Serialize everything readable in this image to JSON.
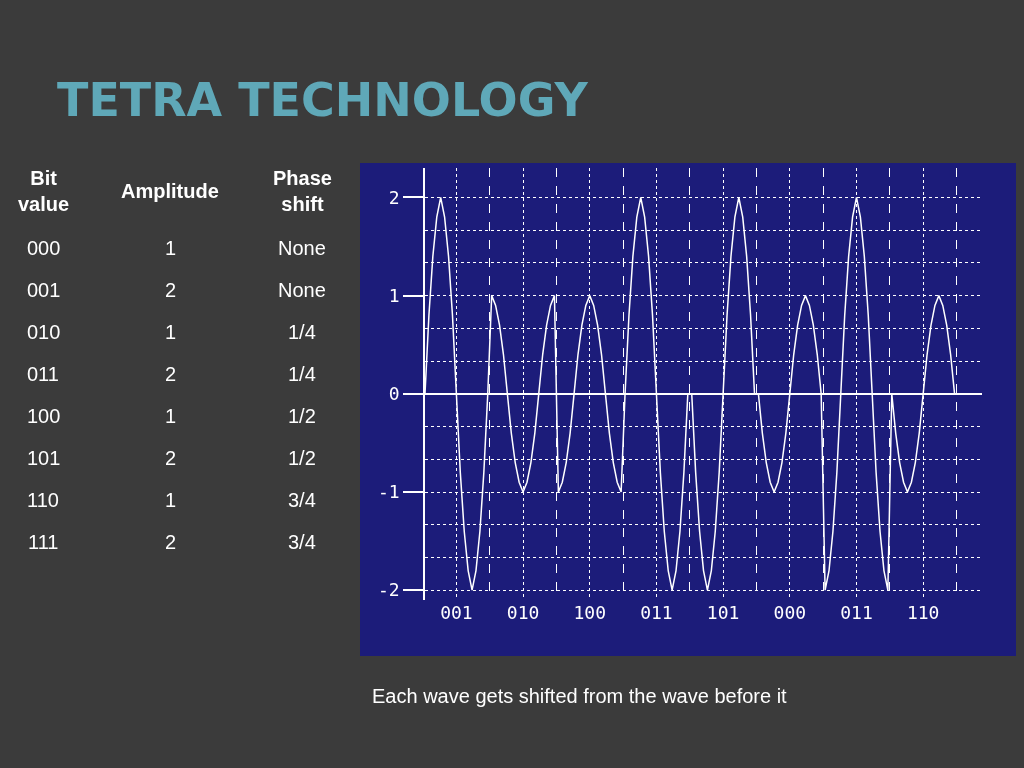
{
  "chart_data": [
    {
      "type": "other",
      "annotations": [
        "Bit\nvalue",
        "Amplitude",
        "Phase\nshift",
        "000",
        "1",
        "None",
        "001",
        "2",
        "None",
        "010",
        "1",
        "1/4",
        "011",
        "2",
        "1/4",
        "100",
        "1",
        "1/2",
        "101",
        "2",
        "1/2",
        "110",
        "1",
        "3/4",
        "111",
        "2",
        "3/4"
      ]
    },
    {
      "type": "line",
      "title": "TETRA TECHNOLOGY",
      "annotations": [
        "Each wave gets shifted from the wave before it"
      ],
      "ylim": [
        -2.1,
        2.3
      ],
      "categories": [
        null,
        null,
        null,
        null,
        null,
        null,
        null,
        null,
        "001",
        null,
        null,
        null,
        null,
        null,
        null,
        null,
        null,
        null,
        null,
        null,
        null,
        null,
        null,
        null,
        null,
        "010",
        null,
        null,
        null,
        null,
        null,
        null,
        null,
        null,
        null,
        null,
        null,
        null,
        null,
        null,
        null,
        null,
        "100",
        null,
        null,
        null,
        null,
        null,
        null,
        null,
        null,
        null,
        null,
        null,
        null,
        null,
        null,
        null,
        null,
        "011",
        null,
        null,
        null,
        null,
        null,
        null,
        null,
        null,
        null,
        null,
        null,
        null,
        null,
        null,
        null,
        null,
        "101",
        null,
        null,
        null,
        null,
        null,
        null,
        null,
        null,
        null,
        null,
        null,
        null,
        null,
        null,
        null,
        null,
        "000",
        null,
        null,
        null,
        null,
        null,
        null,
        null,
        null,
        null,
        null,
        null,
        null,
        null,
        null,
        null,
        null,
        "011",
        null,
        null,
        null,
        null,
        null,
        null,
        null,
        null,
        null,
        null,
        null,
        null,
        null,
        null,
        null,
        null,
        "110",
        null,
        null,
        null,
        null,
        null,
        null,
        null,
        null
      ],
      "yticks": [
        -2,
        -1,
        0,
        1,
        2
      ],
      "grid": true,
      "marker": "none",
      "line_style": "solid",
      "series": [
        {
          "color": "#ffffff",
          "values": [
            0,
            0.8,
            1.4,
            1.8,
            2,
            1.8,
            1.4,
            0.8,
            0,
            -0.8,
            -1.4,
            -1.8,
            -2,
            -1.8,
            -1.4,
            -0.8,
            0,
            1,
            0.9,
            0.7,
            0.4,
            0,
            -0.4,
            -0.7,
            -0.9,
            -1,
            -0.9,
            -0.7,
            -0.4,
            0,
            0.4,
            0.7,
            0.9,
            1,
            -1,
            -0.9,
            -0.7,
            -0.4,
            0,
            0.4,
            0.7,
            0.9,
            1,
            0.9,
            0.7,
            0.4,
            0,
            -0.4,
            -0.7,
            -0.9,
            -1,
            0,
            0.8,
            1.4,
            1.8,
            2,
            1.8,
            1.4,
            0.8,
            0,
            -0.8,
            -1.4,
            -1.8,
            -2,
            -1.8,
            -1.4,
            -0.8,
            0,
            0,
            -0.8,
            -1.4,
            -1.8,
            -2,
            -1.8,
            -1.4,
            -0.8,
            0,
            0.8,
            1.4,
            1.8,
            2,
            1.8,
            1.4,
            0.8,
            0,
            0,
            -0.4,
            -0.7,
            -0.9,
            -1,
            -0.9,
            -0.7,
            -0.4,
            0,
            0.4,
            0.7,
            0.9,
            1,
            0.9,
            0.7,
            0.4,
            0,
            -2,
            -1.8,
            -1.4,
            -0.8,
            0,
            0.8,
            1.4,
            1.8,
            2,
            1.8,
            1.4,
            0.8,
            0,
            -0.8,
            -1.4,
            -1.8,
            -2,
            0,
            -0.4,
            -0.7,
            -0.9,
            -1,
            -0.9,
            -0.7,
            -0.4,
            0,
            0.4,
            0.7,
            0.9,
            1,
            0.9,
            0.7,
            0.4,
            0
          ]
        }
      ]
    }
  ]
}
